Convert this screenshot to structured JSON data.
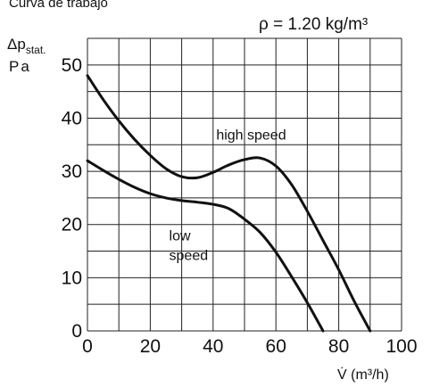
{
  "header": {
    "caption": "Curva de trabajo"
  },
  "chart_data": {
    "type": "line",
    "density_note": "ρ = 1.20 kg/m³",
    "ylabel_symbol": "Δp",
    "ylabel_sub": "stat.",
    "ylabel_unit": "Pa",
    "xlabel": "V̇ (m³/h)",
    "xlim": [
      0,
      100
    ],
    "ylim": [
      0,
      55
    ],
    "grid": true,
    "x_grid": [
      0,
      10,
      20,
      30,
      40,
      50,
      60,
      70,
      80,
      90,
      100
    ],
    "y_grid": [
      0,
      5,
      10,
      15,
      20,
      25,
      30,
      35,
      40,
      45,
      50,
      55
    ],
    "x_ticks": [
      {
        "value": 0,
        "label": "0"
      },
      {
        "value": 20,
        "label": "20"
      },
      {
        "value": 40,
        "label": "40"
      },
      {
        "value": 60,
        "label": "60"
      },
      {
        "value": 80,
        "label": "80"
      },
      {
        "value": 100,
        "label": "100"
      }
    ],
    "y_ticks": [
      {
        "value": 0,
        "label": "0"
      },
      {
        "value": 10,
        "label": "10"
      },
      {
        "value": 20,
        "label": "20"
      },
      {
        "value": 30,
        "label": "30"
      },
      {
        "value": 40,
        "label": "40"
      },
      {
        "value": 50,
        "label": "50"
      }
    ],
    "series": [
      {
        "name": "high speed",
        "label_lines": [
          "high speed"
        ],
        "label_pos": [
          41,
          36
        ],
        "x": [
          0,
          5,
          10,
          15,
          20,
          25,
          30,
          35,
          40,
          45,
          50,
          55,
          60,
          65,
          70,
          75,
          80,
          85,
          90
        ],
        "y": [
          48,
          43.5,
          39.5,
          36,
          33,
          30.5,
          29,
          28.8,
          29.8,
          31.2,
          32.2,
          32.5,
          31,
          27.5,
          22.5,
          17,
          11.5,
          5.5,
          0
        ]
      },
      {
        "name": "low speed",
        "label_lines": [
          "low",
          "speed"
        ],
        "label_pos": [
          26,
          17
        ],
        "x": [
          0,
          5,
          10,
          15,
          20,
          25,
          30,
          35,
          40,
          45,
          50,
          55,
          60,
          65,
          70,
          75
        ],
        "y": [
          32,
          30.2,
          28.5,
          27,
          25.8,
          25,
          24.5,
          24.2,
          23.8,
          23,
          21,
          18.5,
          14.8,
          10.2,
          5.3,
          0
        ]
      }
    ]
  }
}
